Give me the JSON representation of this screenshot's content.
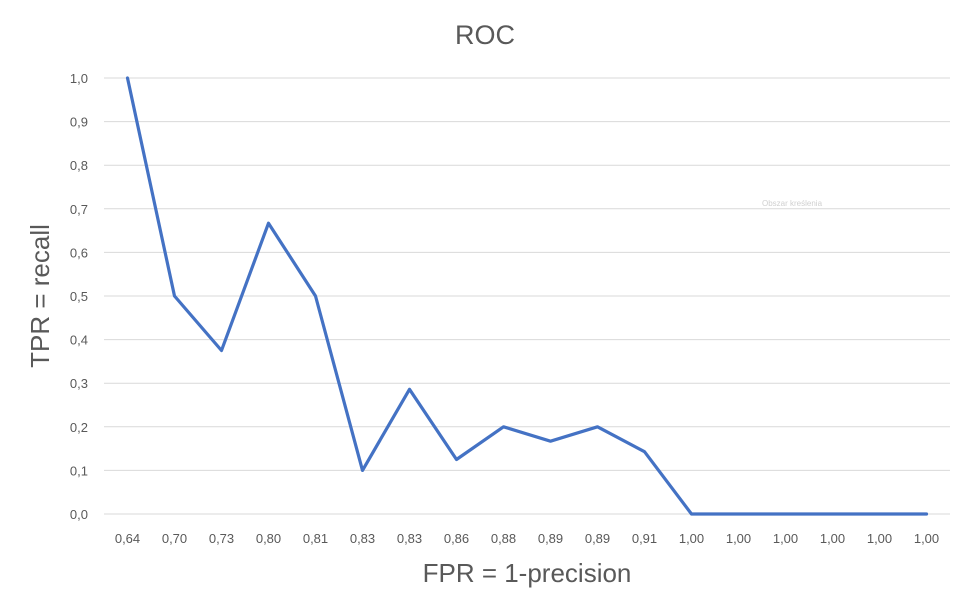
{
  "chart_data": {
    "type": "line",
    "title": "ROC",
    "xlabel": "FPR = 1-precision",
    "ylabel": "TPR = recall",
    "categories": [
      "0,64",
      "0,70",
      "0,73",
      "0,80",
      "0,81",
      "0,83",
      "0,83",
      "0,86",
      "0,88",
      "0,89",
      "0,89",
      "0,91",
      "1,00",
      "1,00",
      "1,00",
      "1,00",
      "1,00",
      "1,00"
    ],
    "series": [
      {
        "values": [
          1.0,
          0.5,
          0.375,
          0.667,
          0.5,
          0.1,
          0.286,
          0.125,
          0.2,
          0.167,
          0.2,
          0.143,
          0.0,
          0.0,
          0.0,
          0.0,
          0.0,
          0.0
        ],
        "color": "#4472c4"
      }
    ],
    "ylim": [
      0,
      1.0
    ],
    "yticks": [
      "0,0",
      "0,1",
      "0,2",
      "0,3",
      "0,4",
      "0,5",
      "0,6",
      "0,7",
      "0,8",
      "0,9",
      "1,0"
    ],
    "grid": true,
    "legend": "none"
  },
  "overlay_tooltip": "Obszar kreślenia"
}
